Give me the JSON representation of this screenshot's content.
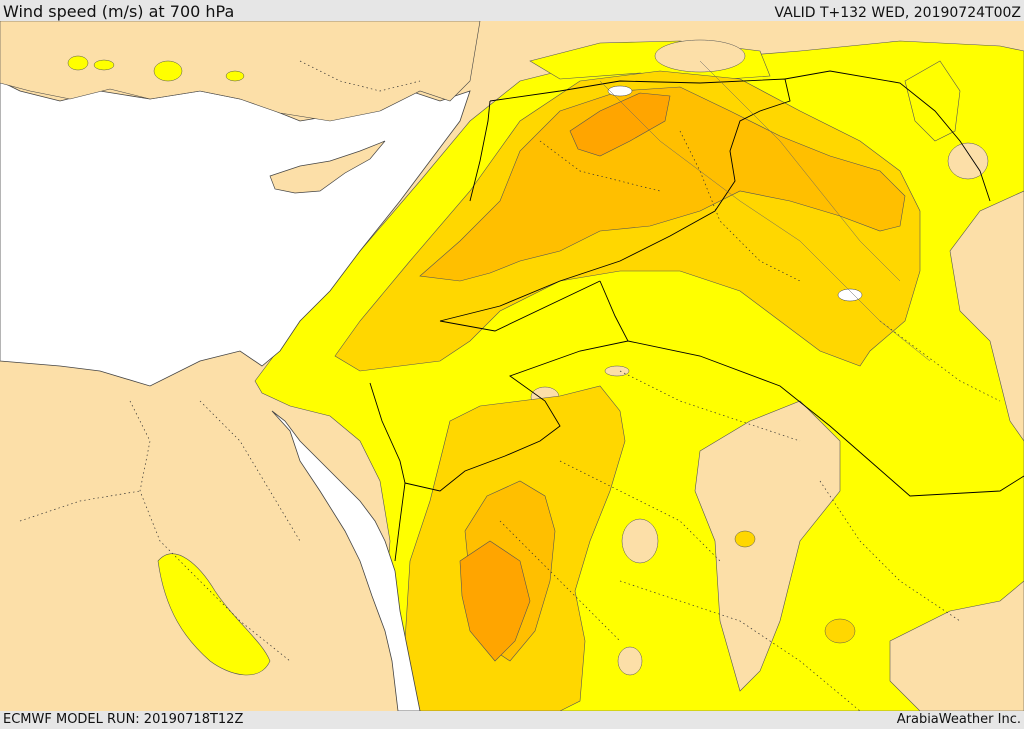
{
  "header": {
    "title": "Wind speed (m/s) at 700 hPa",
    "valid": "VALID T+132 WED, 20190724T00Z"
  },
  "footer": {
    "model_run": "ECMWF MODEL RUN: 20190718T12Z",
    "credit": "ArabiaWeather Inc."
  },
  "map_colors": {
    "sea": "#ffffff",
    "land_calm": "#fcdfa8",
    "wind_band_1": "#ffff00",
    "wind_band_2": "#ffd700",
    "wind_band_3": "#ffbf00",
    "wind_band_4": "#ffa500"
  }
}
